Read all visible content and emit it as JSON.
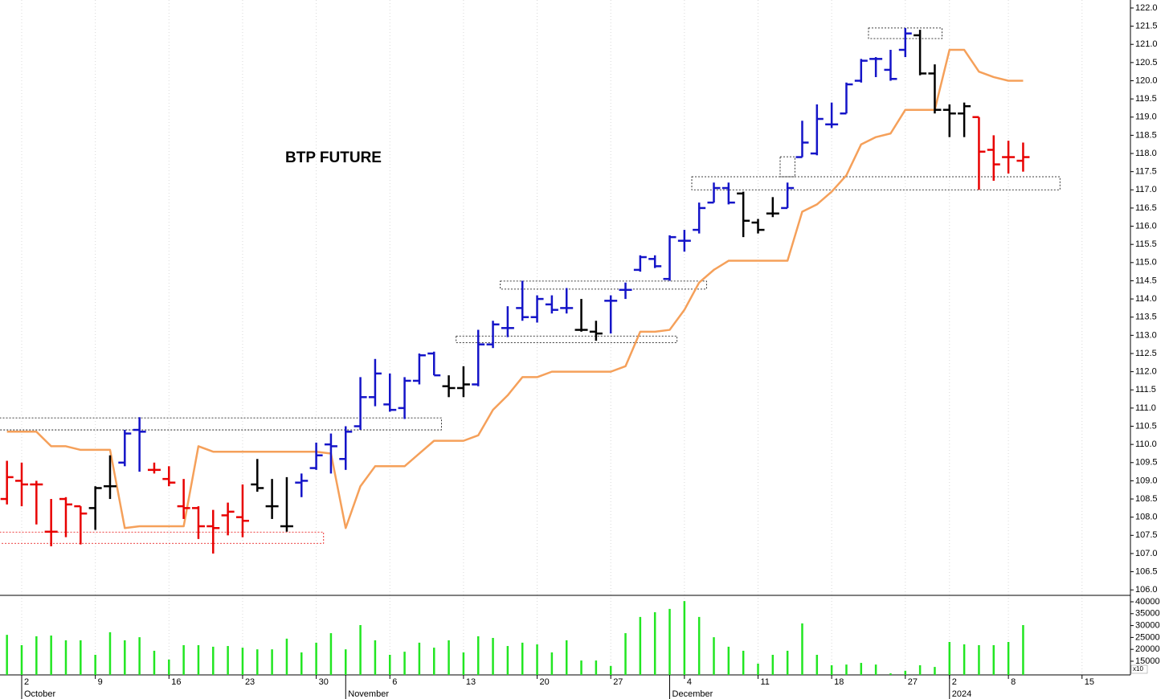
{
  "chart_data": {
    "type": "ohlc",
    "title": "BTP FUTURE",
    "categories": [
      null,
      "2",
      null,
      null,
      null,
      null,
      "9",
      null,
      null,
      null,
      null,
      "16",
      null,
      null,
      null,
      null,
      "23",
      null,
      null,
      null,
      null,
      "30",
      null,
      null,
      null,
      null,
      "6",
      null,
      null,
      null,
      null,
      "13",
      null,
      null,
      null,
      null,
      "20",
      null,
      null,
      null,
      null,
      "27",
      null,
      null,
      null,
      null,
      "4",
      null,
      null,
      null,
      null,
      "11",
      null,
      null,
      null,
      null,
      "18",
      null,
      null,
      null,
      null,
      "27",
      null,
      null,
      "2",
      null,
      null,
      null,
      "8",
      null,
      null,
      null,
      null,
      "15"
    ],
    "months": [
      null,
      "October",
      null,
      null,
      null,
      null,
      null,
      null,
      null,
      null,
      null,
      null,
      null,
      null,
      null,
      null,
      null,
      null,
      null,
      null,
      null,
      null,
      null,
      "November",
      null,
      null,
      null,
      null,
      null,
      null,
      null,
      null,
      null,
      null,
      null,
      null,
      null,
      null,
      null,
      null,
      null,
      null,
      null,
      null,
      null,
      "December",
      null,
      null,
      null,
      null,
      null,
      null,
      null,
      null,
      null,
      null,
      null,
      null,
      null,
      null,
      null,
      null,
      null,
      null,
      "2024",
      null,
      null,
      null,
      null,
      null,
      null,
      null,
      null,
      null
    ],
    "open": [
      108.5,
      109.0,
      108.9,
      107.6,
      108.5,
      108.3,
      108.25,
      108.85,
      109.5,
      110.4,
      109.3,
      109.05,
      108.3,
      108.25,
      107.75,
      108.05,
      108.0,
      108.9,
      108.3,
      107.75,
      108.95,
      109.35,
      110.0,
      109.6,
      110.5,
      111.3,
      111.1,
      111.0,
      111.75,
      112.5,
      111.6,
      111.55,
      111.65,
      112.75,
      113.2,
      113.75,
      113.5,
      113.85,
      113.75,
      113.15,
      113.1,
      113.95,
      114.25,
      114.8,
      115.1,
      114.55,
      115.6,
      115.9,
      116.65,
      117.05,
      116.9,
      116.1,
      116.35,
      116.5,
      117.9,
      118.0,
      118.8,
      119.1,
      120.0,
      120.6,
      120.3,
      120.85,
      121.25,
      120.2,
      119.2,
      119.1,
      119.0,
      118.1,
      117.9,
      117.8,
      null,
      null,
      null,
      null
    ],
    "high": [
      109.55,
      109.5,
      109.0,
      108.5,
      108.55,
      108.3,
      108.85,
      109.7,
      110.4,
      110.75,
      109.5,
      109.4,
      109.05,
      108.3,
      108.2,
      108.4,
      108.9,
      109.6,
      109.05,
      109.1,
      109.2,
      110.05,
      110.3,
      110.5,
      111.85,
      112.35,
      111.95,
      111.85,
      112.5,
      112.55,
      111.9,
      112.15,
      113.15,
      113.4,
      113.8,
      114.5,
      114.1,
      114.1,
      114.3,
      114.0,
      113.4,
      114.1,
      114.45,
      115.2,
      115.2,
      115.75,
      115.9,
      116.65,
      117.2,
      117.2,
      116.95,
      116.2,
      116.8,
      117.2,
      118.9,
      119.35,
      119.4,
      119.95,
      120.6,
      120.65,
      120.85,
      121.45,
      121.4,
      120.45,
      119.35,
      119.4,
      119.0,
      118.5,
      118.35,
      118.3,
      null,
      null,
      null,
      null
    ],
    "low": [
      108.35,
      108.3,
      107.8,
      107.2,
      107.45,
      107.25,
      107.65,
      108.5,
      109.4,
      109.25,
      109.2,
      108.85,
      107.95,
      107.4,
      107.0,
      107.5,
      107.45,
      108.7,
      107.95,
      107.6,
      108.55,
      109.3,
      109.2,
      109.3,
      110.4,
      111.05,
      110.9,
      110.7,
      111.65,
      111.9,
      111.3,
      111.3,
      111.6,
      112.65,
      112.95,
      113.4,
      113.35,
      113.6,
      113.6,
      113.1,
      112.85,
      113.05,
      114.0,
      114.75,
      114.85,
      114.5,
      115.3,
      115.8,
      116.65,
      116.6,
      115.7,
      115.8,
      116.25,
      116.5,
      117.9,
      117.95,
      118.7,
      119.1,
      119.95,
      120.1,
      120.0,
      120.65,
      120.15,
      119.1,
      118.45,
      118.45,
      117.0,
      117.25,
      117.45,
      117.5,
      null,
      null,
      null,
      null
    ],
    "close": [
      109.1,
      108.9,
      108.9,
      107.6,
      108.35,
      108.1,
      108.8,
      108.85,
      110.3,
      110.35,
      109.3,
      108.95,
      108.25,
      107.75,
      107.7,
      108.15,
      107.9,
      108.8,
      108.3,
      107.75,
      109.0,
      109.7,
      109.95,
      110.35,
      111.3,
      111.95,
      110.95,
      111.75,
      112.45,
      111.9,
      111.55,
      111.65,
      112.75,
      113.3,
      113.2,
      113.5,
      114.0,
      113.7,
      113.75,
      113.15,
      113.05,
      113.95,
      114.25,
      115.15,
      114.9,
      115.7,
      115.6,
      116.5,
      117.05,
      116.65,
      116.15,
      115.9,
      116.35,
      117.05,
      118.3,
      118.95,
      118.8,
      119.9,
      120.55,
      120.6,
      120.05,
      121.3,
      120.2,
      119.2,
      119.1,
      119.3,
      118.05,
      117.7,
      117.9,
      117.9,
      null,
      null,
      null,
      null
    ],
    "bar_colors": [
      "#e80000",
      "#e80000",
      "#e80000",
      "#e80000",
      "#e80000",
      "#e80000",
      "#000000",
      "#000000",
      "#1414c8",
      "#1414c8",
      "#e80000",
      "#e80000",
      "#e80000",
      "#e80000",
      "#e80000",
      "#e80000",
      "#e80000",
      "#000000",
      "#000000",
      "#000000",
      "#1414c8",
      "#1414c8",
      "#1414c8",
      "#1414c8",
      "#1414c8",
      "#1414c8",
      "#1414c8",
      "#1414c8",
      "#1414c8",
      "#1414c8",
      "#000000",
      "#000000",
      "#1414c8",
      "#1414c8",
      "#1414c8",
      "#1414c8",
      "#1414c8",
      "#1414c8",
      "#1414c8",
      "#000000",
      "#000000",
      "#1414c8",
      "#1414c8",
      "#1414c8",
      "#1414c8",
      "#1414c8",
      "#1414c8",
      "#1414c8",
      "#1414c8",
      "#1414c8",
      "#000000",
      "#000000",
      "#000000",
      "#1414c8",
      "#1414c8",
      "#1414c8",
      "#1414c8",
      "#1414c8",
      "#1414c8",
      "#1414c8",
      "#1414c8",
      "#1414c8",
      "#000000",
      "#000000",
      "#000000",
      "#000000",
      "#e80000",
      "#e80000",
      "#e80000",
      "#e80000",
      null,
      null,
      null,
      null
    ],
    "stop_line": {
      "color": "#f5a05a",
      "values": [
        110.35,
        110.35,
        110.35,
        109.95,
        109.95,
        109.85,
        109.85,
        109.85,
        107.7,
        107.75,
        107.75,
        107.75,
        107.75,
        109.95,
        109.8,
        109.8,
        109.8,
        109.8,
        109.8,
        109.8,
        109.8,
        109.8,
        109.75,
        107.7,
        108.85,
        109.4,
        109.4,
        109.4,
        109.75,
        110.1,
        110.1,
        110.1,
        110.25,
        110.95,
        111.35,
        111.85,
        111.85,
        112.0,
        112.0,
        112.0,
        112.0,
        112.0,
        112.15,
        113.1,
        113.1,
        113.15,
        113.7,
        114.45,
        114.8,
        115.05,
        115.05,
        115.05,
        115.05,
        115.05,
        116.4,
        116.6,
        116.95,
        117.4,
        118.25,
        118.45,
        118.55,
        119.2,
        119.2,
        119.2,
        120.85,
        120.85,
        120.25,
        120.1,
        120.0,
        120.0,
        null,
        null,
        null,
        null
      ]
    },
    "zones": [
      {
        "start": 0,
        "end": 29,
        "low": 110.4,
        "high": 110.73,
        "color": "#000000"
      },
      {
        "start": 0,
        "end": 21,
        "low": 107.28,
        "high": 107.59,
        "color": "#e80000"
      },
      {
        "start": 31,
        "end": 45,
        "low": 112.8,
        "high": 112.98,
        "color": "#000000"
      },
      {
        "start": 34,
        "end": 47,
        "low": 114.27,
        "high": 114.49,
        "color": "#000000"
      },
      {
        "start": 47,
        "end": 71,
        "low": 117.0,
        "high": 117.36,
        "color": "#000000"
      },
      {
        "start": 53,
        "end": 53,
        "low": 117.36,
        "high": 117.91,
        "color": "#000000"
      },
      {
        "start": 59,
        "end": 63,
        "low": 121.16,
        "high": 121.45,
        "color": "#000000"
      }
    ],
    "ylim": [
      105.85,
      122.22
    ],
    "yticks": [
      {
        "value": 106,
        "label": "106.0"
      },
      106.5,
      {
        "value": 107,
        "label": "107.0"
      },
      107.5,
      {
        "value": 108,
        "label": "108.0"
      },
      108.5,
      {
        "value": 109,
        "label": "109.0"
      },
      109.5,
      {
        "value": 110,
        "label": "110.0"
      },
      110.5,
      {
        "value": 111,
        "label": "111.0"
      },
      111.5,
      {
        "value": 112,
        "label": "112.0"
      },
      112.5,
      {
        "value": 113,
        "label": "113.0"
      },
      113.5,
      {
        "value": 114,
        "label": "114.0"
      },
      114.5,
      {
        "value": 115,
        "label": "115.0"
      },
      115.5,
      {
        "value": 116,
        "label": "116.0"
      },
      116.5,
      {
        "value": 117,
        "label": "117.0"
      },
      117.5,
      {
        "value": 118,
        "label": "118.0"
      },
      118.5,
      {
        "value": 119,
        "label": "119.0"
      },
      119.5,
      {
        "value": 120,
        "label": "120.0"
      },
      120.5,
      {
        "value": 121,
        "label": "121.0"
      },
      121.5,
      {
        "value": 122,
        "label": "122.0"
      }
    ],
    "grid": true,
    "volume": {
      "color": "#22e622",
      "unit_label": "x10",
      "values": [
        26100,
        21750,
        25500,
        25800,
        23800,
        23800,
        17700,
        27200,
        23800,
        25100,
        19400,
        15700,
        21750,
        21750,
        21100,
        21400,
        20700,
        20000,
        20000,
        24500,
        18700,
        22800,
        26800,
        20000,
        30200,
        23800,
        17700,
        19000,
        22800,
        20700,
        23800,
        18700,
        25500,
        24800,
        21400,
        22800,
        22100,
        18700,
        23800,
        15300,
        15300,
        13000,
        26800,
        33600,
        35600,
        37000,
        40300,
        33600,
        25100,
        21100,
        19400,
        14000,
        17700,
        19400,
        30900,
        17700,
        13300,
        13600,
        14300,
        13600,
        9900,
        11000,
        13300,
        12600,
        23100,
        22100,
        21750,
        21750,
        23100,
        30200,
        null,
        null,
        null,
        null
      ],
      "ylim": [
        9250,
        42700
      ],
      "yticks": [
        15000,
        20000,
        25000,
        30000,
        35000,
        40000
      ]
    }
  }
}
